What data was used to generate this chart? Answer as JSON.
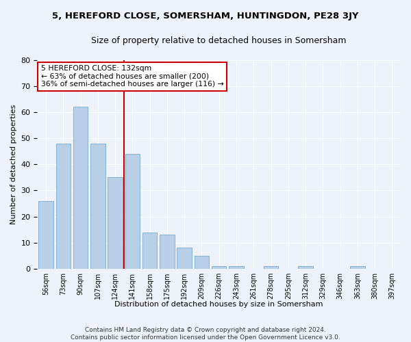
{
  "title1": "5, HEREFORD CLOSE, SOMERSHAM, HUNTINGDON, PE28 3JY",
  "title2": "Size of property relative to detached houses in Somersham",
  "xlabel": "Distribution of detached houses by size in Somersham",
  "ylabel": "Number of detached properties",
  "bar_labels": [
    "56sqm",
    "73sqm",
    "90sqm",
    "107sqm",
    "124sqm",
    "141sqm",
    "158sqm",
    "175sqm",
    "192sqm",
    "209sqm",
    "226sqm",
    "243sqm",
    "261sqm",
    "278sqm",
    "295sqm",
    "312sqm",
    "329sqm",
    "346sqm",
    "363sqm",
    "380sqm",
    "397sqm"
  ],
  "bar_values": [
    26,
    48,
    62,
    48,
    35,
    44,
    14,
    13,
    8,
    5,
    1,
    1,
    0,
    1,
    0,
    1,
    0,
    0,
    1,
    0,
    0
  ],
  "bar_color": "#b8cfe8",
  "bar_edge_color": "#7aaad0",
  "vline_x": 4.5,
  "vline_color": "#cc0000",
  "annotation_title": "5 HEREFORD CLOSE: 132sqm",
  "annotation_line1": "← 63% of detached houses are smaller (200)",
  "annotation_line2": "36% of semi-detached houses are larger (116) →",
  "annotation_box_color": "#cc0000",
  "ylim": [
    0,
    80
  ],
  "yticks": [
    0,
    10,
    20,
    30,
    40,
    50,
    60,
    70,
    80
  ],
  "footer1": "Contains HM Land Registry data © Crown copyright and database right 2024.",
  "footer2": "Contains public sector information licensed under the Open Government Licence v3.0.",
  "bg_color": "#eef2fb",
  "plot_bg_color": "#eef2fb"
}
